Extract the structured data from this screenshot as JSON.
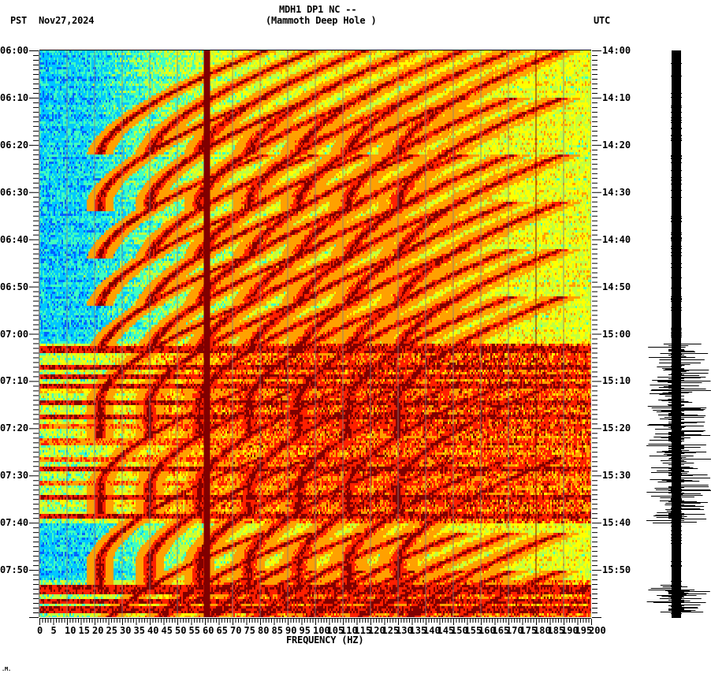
{
  "header": {
    "title_line1": "MDH1 DP1 NC --",
    "title_line2": "(Mammoth Deep Hole )",
    "left_tz": "PST",
    "date": "Nov27,2024",
    "right_tz": "UTC"
  },
  "footer": {
    "mark": ".M."
  },
  "chart_data": {
    "type": "heatmap",
    "title": "MDH1 DP1 NC -- (Mammoth Deep Hole )",
    "subtitle": "Spectrogram, Nov27,2024",
    "xlabel": "FREQUENCY (HZ)",
    "ylabel_left": "PST",
    "ylabel_right": "UTC",
    "xlim": [
      0,
      200
    ],
    "x_ticks": [
      0,
      5,
      10,
      15,
      20,
      25,
      30,
      35,
      40,
      45,
      50,
      55,
      60,
      65,
      70,
      75,
      80,
      85,
      90,
      95,
      100,
      105,
      110,
      115,
      120,
      125,
      130,
      135,
      140,
      145,
      150,
      155,
      160,
      165,
      170,
      175,
      180,
      185,
      190,
      195,
      200
    ],
    "y_ticks_left": [
      "06:00",
      "06:10",
      "06:20",
      "06:30",
      "06:40",
      "06:50",
      "07:00",
      "07:10",
      "07:20",
      "07:30",
      "07:40",
      "07:50"
    ],
    "y_ticks_right": [
      "14:00",
      "14:10",
      "14:20",
      "14:30",
      "14:40",
      "14:50",
      "15:00",
      "15:10",
      "15:20",
      "15:30",
      "15:40",
      "15:50"
    ],
    "time_range_minutes": [
      0,
      120
    ],
    "gridlines_hz_every": 10,
    "colormap": [
      "#0064ff",
      "#00c8ff",
      "#40ffc0",
      "#c0ff40",
      "#ffff00",
      "#ffa000",
      "#ff2000",
      "#800000"
    ],
    "persistent_lines_hz": [
      {
        "hz": 60,
        "width": 3,
        "color": "#800000"
      },
      {
        "hz": 180,
        "width": 1,
        "color": "#800000"
      }
    ],
    "sweep_segments_minutes_start": [
      0,
      10,
      22,
      32,
      42,
      52,
      70,
      86,
      102,
      110
    ],
    "broadband_bands_minutes": [
      {
        "start": 62.5,
        "end": 64,
        "level": 7
      },
      {
        "start": 66.5,
        "end": 67.5,
        "level": 7
      },
      {
        "start": 68.5,
        "end": 69.5,
        "level": 7
      },
      {
        "start": 70.5,
        "end": 71.5,
        "level": 7
      },
      {
        "start": 71.5,
        "end": 72.5,
        "level": 5
      },
      {
        "start": 74,
        "end": 75,
        "level": 7
      },
      {
        "start": 77,
        "end": 78,
        "level": 7
      },
      {
        "start": 79,
        "end": 80,
        "level": 6
      },
      {
        "start": 82,
        "end": 83.5,
        "level": 6
      },
      {
        "start": 86,
        "end": 87,
        "level": 6
      },
      {
        "start": 88,
        "end": 89,
        "level": 7
      },
      {
        "start": 91,
        "end": 92,
        "level": 6
      },
      {
        "start": 94,
        "end": 95,
        "level": 7
      },
      {
        "start": 98,
        "end": 99,
        "level": 7
      },
      {
        "start": 113,
        "end": 115,
        "level": 7
      },
      {
        "start": 116,
        "end": 117,
        "level": 7
      },
      {
        "start": 117.5,
        "end": 119,
        "level": 7
      }
    ],
    "noise_floor_by_freq": [
      {
        "hz": 0,
        "level": 1.0
      },
      {
        "hz": 20,
        "level": 1.2
      },
      {
        "hz": 40,
        "level": 2.3
      },
      {
        "hz": 60,
        "level": 3.0
      },
      {
        "hz": 100,
        "level": 3.6
      },
      {
        "hz": 140,
        "level": 3.7
      },
      {
        "hz": 200,
        "level": 3.6
      }
    ],
    "seismogram": {
      "center_x": 858,
      "quiet_halfwidth": 6,
      "burst_windows_minutes": [
        [
          62,
          100
        ],
        [
          113,
          119
        ]
      ]
    }
  }
}
